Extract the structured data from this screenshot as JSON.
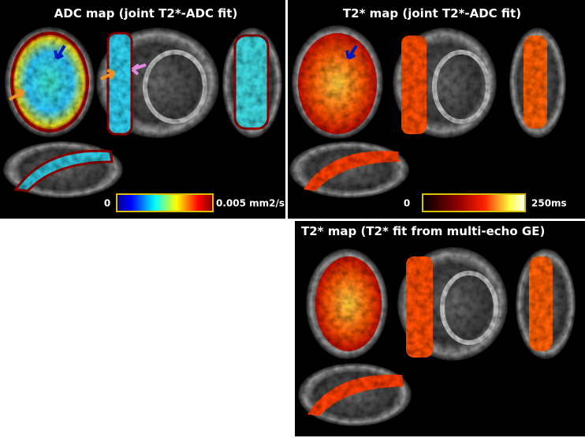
{
  "panels": [
    {
      "title": "ADC map (joint T2*-ADC fit)",
      "colorbar": {
        "min_label": "0",
        "max_label": "0.005 mm2/s"
      }
    },
    {
      "title": "T2* map (joint T2*-ADC fit)",
      "colorbar": {
        "min_label": "0",
        "max_label": "250ms"
      }
    },
    {
      "title": "T2* map (T2* fit from multi-echo GE)"
    }
  ]
}
